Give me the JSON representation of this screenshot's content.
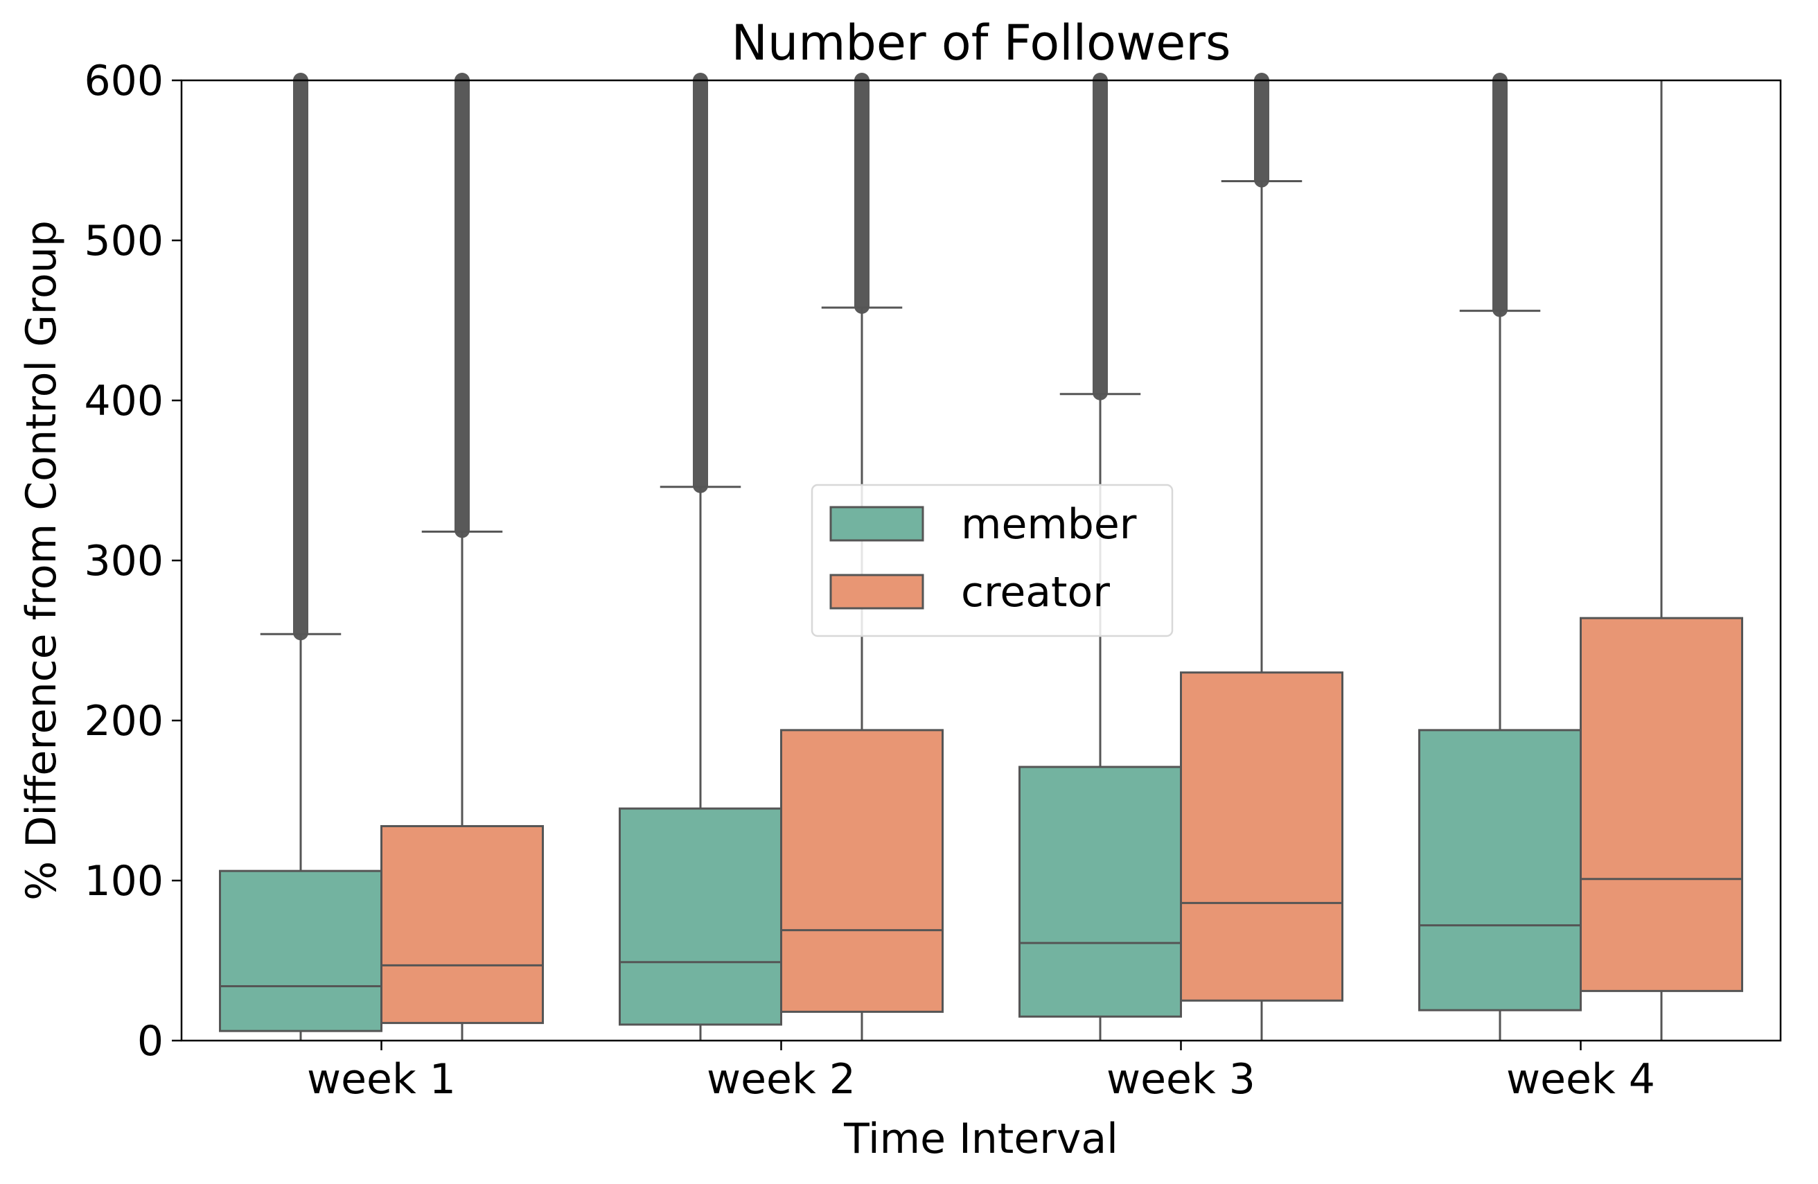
{
  "chart_data": {
    "type": "boxplot",
    "title": "Number of Followers",
    "xlabel": "Time Interval",
    "ylabel": "% Difference from Control Group",
    "ylim": [
      0,
      600
    ],
    "yticks": [
      0,
      100,
      200,
      300,
      400,
      500,
      600
    ],
    "categories": [
      "week 1",
      "week 2",
      "week 3",
      "week 4"
    ],
    "legend": {
      "placement": "center",
      "entries": [
        "member",
        "creator"
      ]
    },
    "series": [
      {
        "name": "member",
        "color": "#73b3a0",
        "boxes": [
          {
            "category": "week 1",
            "q1": 6,
            "median": 34,
            "q3": 106,
            "whisker_low": 0,
            "whisker_high": 254,
            "outliers_up_to": 600
          },
          {
            "category": "week 2",
            "q1": 10,
            "median": 49,
            "q3": 145,
            "whisker_low": 0,
            "whisker_high": 346,
            "outliers_up_to": 600
          },
          {
            "category": "week 3",
            "q1": 15,
            "median": 61,
            "q3": 171,
            "whisker_low": 0,
            "whisker_high": 404,
            "outliers_up_to": 600
          },
          {
            "category": "week 4",
            "q1": 19,
            "median": 72,
            "q3": 194,
            "whisker_low": 0,
            "whisker_high": 456,
            "outliers_up_to": 600
          }
        ]
      },
      {
        "name": "creator",
        "color": "#e89674",
        "boxes": [
          {
            "category": "week 1",
            "q1": 11,
            "median": 47,
            "q3": 134,
            "whisker_low": 0,
            "whisker_high": 318,
            "outliers_up_to": 600
          },
          {
            "category": "week 2",
            "q1": 18,
            "median": 69,
            "q3": 194,
            "whisker_low": 0,
            "whisker_high": 458,
            "outliers_up_to": 600
          },
          {
            "category": "week 3",
            "q1": 25,
            "median": 86,
            "q3": 230,
            "whisker_low": 0,
            "whisker_high": 537,
            "outliers_up_to": 600
          },
          {
            "category": "week 4",
            "q1": 31,
            "median": 101,
            "q3": 264,
            "whisker_low": 0,
            "whisker_high": 600,
            "outliers_up_to": null
          }
        ]
      }
    ]
  }
}
